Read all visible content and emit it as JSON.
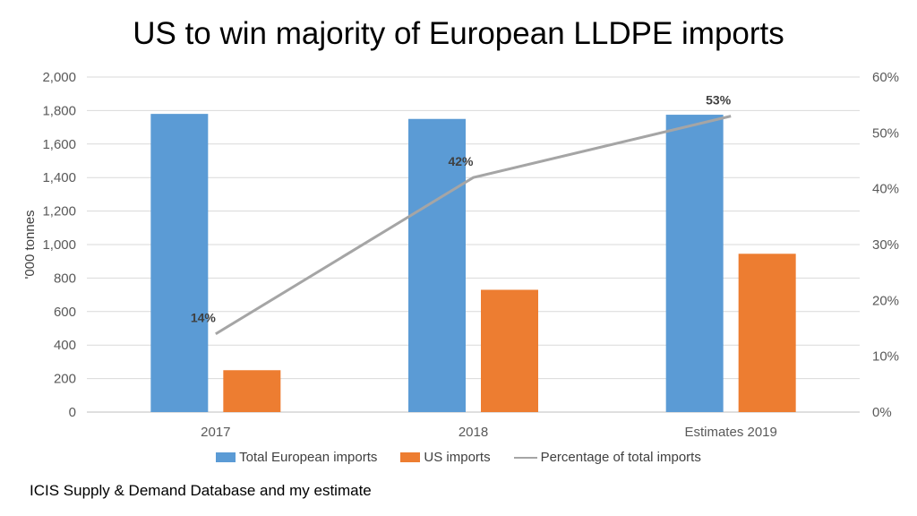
{
  "title": "US to win majority of European LLDPE imports",
  "source": "ICIS Supply & Demand Database and my estimate",
  "chart_data": {
    "type": "bar",
    "categories": [
      "2017",
      "2018",
      "Estimates 2019"
    ],
    "series": [
      {
        "name": "Total European imports",
        "type": "bar",
        "axis": "left",
        "color": "#5B9BD5",
        "values": [
          1780,
          1750,
          1775
        ]
      },
      {
        "name": "US imports",
        "type": "bar",
        "axis": "left",
        "color": "#ED7D31",
        "values": [
          250,
          730,
          945
        ]
      },
      {
        "name": "Percentage of total imports",
        "type": "line",
        "axis": "right",
        "color": "#A5A5A5",
        "values": [
          14,
          42,
          53
        ],
        "data_labels": [
          "14%",
          "42%",
          "53%"
        ]
      }
    ],
    "ylabel": "'000 tonnes",
    "ylim": [
      0,
      2000
    ],
    "yticks": [
      "0",
      "200",
      "400",
      "600",
      "800",
      "1,000",
      "1,200",
      "1,400",
      "1,600",
      "1,800",
      "2,000"
    ],
    "y2lim": [
      0,
      60
    ],
    "y2ticks": [
      "0%",
      "10%",
      "20%",
      "30%",
      "40%",
      "50%",
      "60%"
    ],
    "grid": true,
    "legend_position": "bottom"
  }
}
